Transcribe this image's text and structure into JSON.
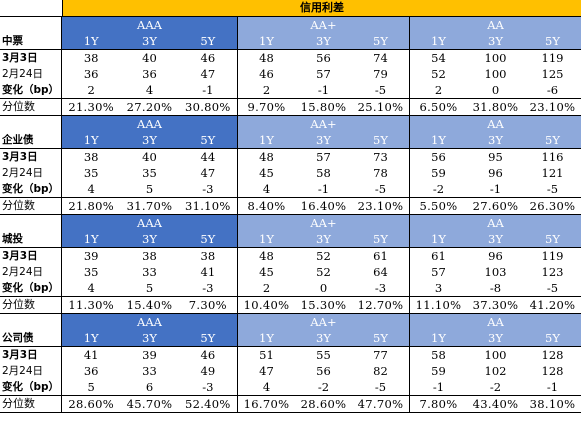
{
  "title": "信用利差",
  "groups": [
    "AAA",
    "AA+",
    "AA"
  ],
  "tenors": [
    "1Y",
    "3Y",
    "5Y"
  ],
  "blocks": [
    {
      "name": "中票",
      "rows": [
        {
          "label": "3月3日",
          "bold": true,
          "values": [
            "38",
            "40",
            "46",
            "48",
            "56",
            "74",
            "54",
            "100",
            "119"
          ]
        },
        {
          "label": "2月24日",
          "bold": false,
          "values": [
            "36",
            "36",
            "47",
            "46",
            "57",
            "79",
            "52",
            "100",
            "125"
          ]
        },
        {
          "label": "变化（bp）",
          "bold": true,
          "values": [
            "2",
            "4",
            "-1",
            "2",
            "-1",
            "-5",
            "2",
            "0",
            "-6"
          ]
        },
        {
          "label": "分位数",
          "bold": false,
          "values": [
            "21.30%",
            "27.20%",
            "30.80%",
            "9.70%",
            "15.80%",
            "25.10%",
            "6.50%",
            "31.80%",
            "23.10%"
          ]
        }
      ]
    },
    {
      "name": "企业债",
      "rows": [
        {
          "label": "3月3日",
          "bold": true,
          "values": [
            "38",
            "40",
            "44",
            "48",
            "57",
            "73",
            "56",
            "95",
            "116"
          ]
        },
        {
          "label": "2月24日",
          "bold": false,
          "values": [
            "35",
            "35",
            "47",
            "45",
            "58",
            "78",
            "59",
            "96",
            "121"
          ]
        },
        {
          "label": "变化（bp）",
          "bold": true,
          "values": [
            "4",
            "5",
            "-3",
            "4",
            "-1",
            "-5",
            "-2",
            "-1",
            "-5"
          ]
        },
        {
          "label": "分位数",
          "bold": false,
          "values": [
            "21.80%",
            "31.70%",
            "31.10%",
            "8.40%",
            "16.40%",
            "23.10%",
            "5.50%",
            "27.60%",
            "26.30%"
          ]
        }
      ]
    },
    {
      "name": "城投",
      "rows": [
        {
          "label": "3月3日",
          "bold": true,
          "values": [
            "39",
            "38",
            "38",
            "48",
            "52",
            "61",
            "61",
            "96",
            "119"
          ]
        },
        {
          "label": "2月24日",
          "bold": false,
          "values": [
            "35",
            "33",
            "41",
            "45",
            "52",
            "64",
            "57",
            "103",
            "123"
          ]
        },
        {
          "label": "变化（bp）",
          "bold": true,
          "values": [
            "4",
            "5",
            "-3",
            "2",
            "0",
            "-3",
            "3",
            "-8",
            "-5"
          ]
        },
        {
          "label": "分位数",
          "bold": false,
          "values": [
            "11.30%",
            "15.40%",
            "7.30%",
            "10.40%",
            "15.30%",
            "12.70%",
            "11.10%",
            "37.30%",
            "41.20%"
          ]
        }
      ]
    },
    {
      "name": "公司债",
      "rows": [
        {
          "label": "3月3日",
          "bold": true,
          "values": [
            "41",
            "39",
            "46",
            "51",
            "55",
            "77",
            "58",
            "100",
            "128"
          ]
        },
        {
          "label": "2月24日",
          "bold": false,
          "values": [
            "36",
            "33",
            "49",
            "47",
            "56",
            "82",
            "59",
            "102",
            "128"
          ]
        },
        {
          "label": "变化（bp）",
          "bold": true,
          "values": [
            "5",
            "6",
            "-3",
            "4",
            "-2",
            "-5",
            "-1",
            "-2",
            "-1"
          ]
        },
        {
          "label": "分位数",
          "bold": false,
          "values": [
            "28.60%",
            "45.70%",
            "52.40%",
            "16.70%",
            "28.60%",
            "47.70%",
            "7.80%",
            "43.40%",
            "38.10%"
          ]
        }
      ]
    }
  ],
  "colors": {
    "title_bg": "#ffc000",
    "aaa_bg": "#4472c4",
    "aa_bg": "#8ea9db"
  }
}
